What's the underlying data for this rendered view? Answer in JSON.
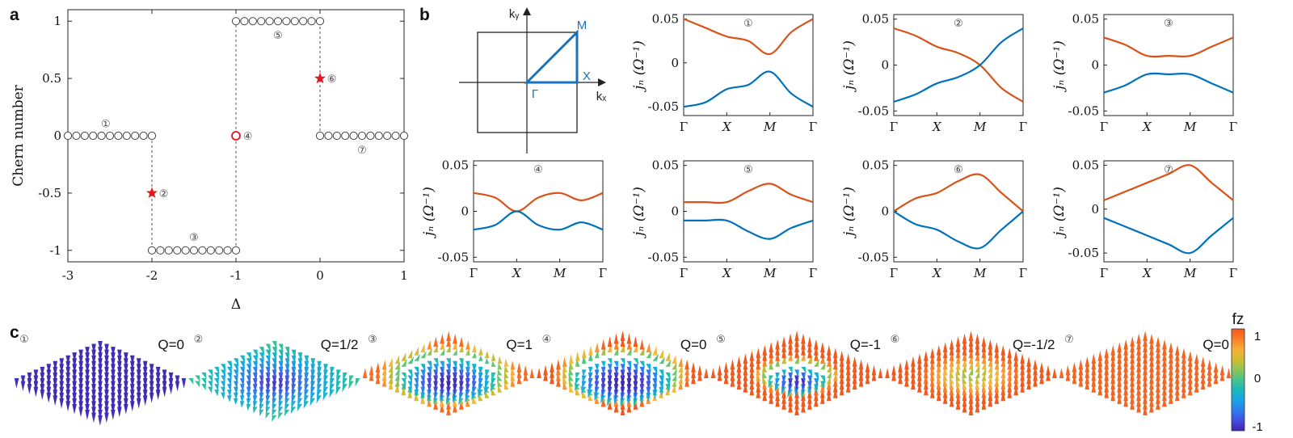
{
  "figure": {
    "panel_labels": [
      "a",
      "b",
      "c"
    ]
  },
  "colors": {
    "upper_band": "#d95319",
    "lower_band": "#0072bd",
    "marker": "#444444",
    "highlight": "#e8141b",
    "bz": "#1a72bb"
  },
  "chart_data": [
    {
      "type": "scatter",
      "id": "chern-vs-delta",
      "xlabel": "Δ",
      "ylabel": "Chern number",
      "xlim": [
        -3,
        1
      ],
      "ylim": [
        -1.1,
        1.1
      ],
      "xticks": [
        -3,
        -2,
        -1,
        0,
        1
      ],
      "xtick_labels": [
        "-3",
        "-2",
        "-1",
        "0",
        "1"
      ],
      "yticks": [
        -1,
        -0.5,
        0,
        0.5,
        1
      ],
      "ytick_labels": [
        "-1",
        "-0.5",
        "0",
        "0.5",
        "1"
      ],
      "series": [
        {
          "points": [
            [
              -3,
              0
            ],
            [
              -2.9,
              0
            ],
            [
              -2.8,
              0
            ],
            [
              -2.7,
              0
            ],
            [
              -2.6,
              0
            ],
            [
              -2.5,
              0
            ],
            [
              -2.4,
              0
            ],
            [
              -2.3,
              0
            ],
            [
              -2.2,
              0
            ],
            [
              -2.1,
              0
            ],
            [
              -2,
              0
            ]
          ],
          "marker": "open-circle"
        },
        {
          "points": [
            [
              -2,
              -1
            ],
            [
              -1.9,
              -1
            ],
            [
              -1.8,
              -1
            ],
            [
              -1.7,
              -1
            ],
            [
              -1.6,
              -1
            ],
            [
              -1.5,
              -1
            ],
            [
              -1.4,
              -1
            ],
            [
              -1.3,
              -1
            ],
            [
              -1.2,
              -1
            ],
            [
              -1.1,
              -1
            ],
            [
              -1,
              -1
            ]
          ],
          "marker": "open-circle"
        },
        {
          "points": [
            [
              -1,
              1
            ],
            [
              -0.9,
              1
            ],
            [
              -0.8,
              1
            ],
            [
              -0.7,
              1
            ],
            [
              -0.6,
              1
            ],
            [
              -0.5,
              1
            ],
            [
              -0.4,
              1
            ],
            [
              -0.3,
              1
            ],
            [
              -0.2,
              1
            ],
            [
              -0.1,
              1
            ],
            [
              0,
              1
            ]
          ],
          "marker": "open-circle"
        },
        {
          "points": [
            [
              0,
              0
            ],
            [
              0.1,
              0
            ],
            [
              0.2,
              0
            ],
            [
              0.3,
              0
            ],
            [
              0.4,
              0
            ],
            [
              0.5,
              0
            ],
            [
              0.6,
              0
            ],
            [
              0.7,
              0
            ],
            [
              0.8,
              0
            ],
            [
              0.9,
              0
            ],
            [
              1,
              0
            ]
          ],
          "marker": "open-circle"
        },
        {
          "points": [
            [
              -1,
              0
            ]
          ],
          "marker": "red-open-circle"
        },
        {
          "points": [
            [
              -2,
              -0.5
            ],
            [
              0,
              0.5
            ]
          ],
          "marker": "red-star"
        }
      ],
      "transitions": [
        [
          -2,
          0,
          -1
        ],
        [
          -1,
          -1,
          1
        ],
        [
          0,
          0,
          1
        ]
      ],
      "annotations": [
        {
          "text": "①",
          "x": -2.55,
          "y": 0.11
        },
        {
          "text": "②",
          "x": -1.86,
          "y": -0.5
        },
        {
          "text": "③",
          "x": -1.5,
          "y": -0.88
        },
        {
          "text": "④",
          "x": -0.86,
          "y": 0
        },
        {
          "text": "⑤",
          "x": -0.5,
          "y": 0.88
        },
        {
          "text": "⑥",
          "x": 0.14,
          "y": 0.5
        },
        {
          "text": "⑦",
          "x": 0.5,
          "y": -0.12
        }
      ]
    },
    {
      "type": "diagram",
      "id": "brillouin-zone",
      "labels": {
        "ky": "kᵧ",
        "kx": "kₓ",
        "M": "M",
        "X": "X",
        "G": "Γ"
      }
    },
    {
      "type": "line",
      "id": "band-1",
      "panel_tag": "①",
      "xticks": [
        "Γ",
        "X",
        "M",
        "Γ"
      ],
      "ylabel": "jₙ (Ω⁻¹)",
      "ylim": [
        -0.06,
        0.055
      ],
      "yticks": [
        0.05,
        0,
        -0.05
      ],
      "ytick_labels": [
        "0.05",
        "0",
        "-0.05"
      ],
      "x": [
        0,
        0.5,
        1,
        1.5,
        2,
        2.5,
        3
      ],
      "series": [
        {
          "values": [
            0.05,
            0.04,
            0.03,
            0.025,
            0.01,
            0.035,
            0.05
          ]
        },
        {
          "values": [
            -0.05,
            -0.045,
            -0.03,
            -0.025,
            -0.01,
            -0.035,
            -0.05
          ]
        }
      ]
    },
    {
      "type": "line",
      "id": "band-2",
      "panel_tag": "②",
      "xticks": [
        "Γ",
        "X",
        "M",
        "Γ"
      ],
      "ylabel": "jₙ (Ω⁻¹)",
      "ylim": [
        -0.055,
        0.055
      ],
      "yticks": [
        0.05,
        0,
        -0.05
      ],
      "ytick_labels": [
        "0.05",
        "0",
        "-0.05"
      ],
      "x": [
        0,
        0.5,
        1,
        1.5,
        2,
        2.5,
        3
      ],
      "series": [
        {
          "values": [
            0.04,
            0.032,
            0.02,
            0.013,
            0.0,
            -0.025,
            -0.04
          ]
        },
        {
          "values": [
            -0.04,
            -0.032,
            -0.02,
            -0.013,
            0.0,
            0.025,
            0.04
          ]
        }
      ]
    },
    {
      "type": "line",
      "id": "band-3",
      "panel_tag": "③",
      "xticks": [
        "Γ",
        "X",
        "M",
        "Γ"
      ],
      "ylabel": "jₙ (Ω⁻¹)",
      "ylim": [
        -0.055,
        0.055
      ],
      "yticks": [
        0.05,
        0,
        -0.05
      ],
      "ytick_labels": [
        "0.05",
        "0",
        "-0.05"
      ],
      "x": [
        0,
        0.5,
        1,
        1.5,
        2,
        2.5,
        3
      ],
      "series": [
        {
          "values": [
            0.03,
            0.022,
            0.01,
            0.01,
            0.01,
            0.02,
            0.03
          ]
        },
        {
          "values": [
            -0.03,
            -0.022,
            -0.01,
            -0.01,
            -0.01,
            -0.02,
            -0.03
          ]
        }
      ]
    },
    {
      "type": "line",
      "id": "band-4",
      "panel_tag": "④",
      "xticks": [
        "Γ",
        "X",
        "M",
        "Γ"
      ],
      "ylabel": "jₙ (Ω⁻¹)",
      "ylim": [
        -0.055,
        0.055
      ],
      "yticks": [
        0.05,
        0,
        -0.05
      ],
      "ytick_labels": [
        "0.05",
        "0",
        "-0.05"
      ],
      "x": [
        0,
        0.5,
        1,
        1.5,
        2,
        2.5,
        3
      ],
      "series": [
        {
          "values": [
            0.02,
            0.015,
            0.0,
            0.015,
            0.02,
            0.012,
            0.02
          ]
        },
        {
          "values": [
            -0.02,
            -0.015,
            0.0,
            -0.015,
            -0.02,
            -0.012,
            -0.02
          ]
        }
      ]
    },
    {
      "type": "line",
      "id": "band-5",
      "panel_tag": "⑤",
      "xticks": [
        "Γ",
        "X",
        "M",
        "Γ"
      ],
      "ylabel": "jₙ (Ω⁻¹)",
      "ylim": [
        -0.055,
        0.055
      ],
      "yticks": [
        0.05,
        0,
        -0.05
      ],
      "ytick_labels": [
        "0.05",
        "0",
        "-0.05"
      ],
      "x": [
        0,
        0.5,
        1,
        1.5,
        2,
        2.5,
        3
      ],
      "series": [
        {
          "values": [
            0.01,
            0.01,
            0.01,
            0.022,
            0.03,
            0.018,
            0.01
          ]
        },
        {
          "values": [
            -0.01,
            -0.01,
            -0.01,
            -0.022,
            -0.03,
            -0.018,
            -0.01
          ]
        }
      ]
    },
    {
      "type": "line",
      "id": "band-6",
      "panel_tag": "⑥",
      "xticks": [
        "Γ",
        "X",
        "M",
        "Γ"
      ],
      "ylabel": "jₙ (Ω⁻¹)",
      "ylim": [
        -0.055,
        0.055
      ],
      "yticks": [
        0.05,
        0,
        -0.05
      ],
      "ytick_labels": [
        "0.05",
        "0",
        "-0.05"
      ],
      "x": [
        0,
        0.5,
        1,
        1.5,
        2,
        2.5,
        3
      ],
      "series": [
        {
          "values": [
            0.0,
            0.014,
            0.02,
            0.033,
            0.04,
            0.02,
            0.0
          ]
        },
        {
          "values": [
            0.0,
            -0.014,
            -0.02,
            -0.033,
            -0.04,
            -0.02,
            0.0
          ]
        }
      ]
    },
    {
      "type": "line",
      "id": "band-7",
      "panel_tag": "⑦",
      "xticks": [
        "Γ",
        "X",
        "M",
        "Γ"
      ],
      "ylabel": "jₙ (Ω⁻¹)",
      "ylim": [
        -0.06,
        0.055
      ],
      "yticks": [
        0.05,
        0,
        -0.05
      ],
      "ytick_labels": [
        "0.05",
        "0",
        "-0.05"
      ],
      "x": [
        0,
        0.5,
        1,
        1.5,
        2,
        2.5,
        3
      ],
      "series": [
        {
          "values": [
            0.01,
            0.02,
            0.03,
            0.04,
            0.05,
            0.03,
            0.01
          ]
        },
        {
          "values": [
            -0.01,
            -0.02,
            -0.03,
            -0.04,
            -0.05,
            -0.03,
            -0.01
          ]
        }
      ]
    },
    {
      "type": "heatmap",
      "id": "spin-textures",
      "textures": [
        {
          "tag": "①",
          "label": "Q=0",
          "charge": 0
        },
        {
          "tag": "②",
          "label": "Q=1/2",
          "charge": 0.5
        },
        {
          "tag": "③",
          "label": "Q=1",
          "charge": 1
        },
        {
          "tag": "④",
          "label": "Q=0",
          "charge": 0.1
        },
        {
          "tag": "⑤",
          "label": "Q=-1",
          "charge": -1
        },
        {
          "tag": "⑥",
          "label": "Q=-1/2",
          "charge": -0.5
        },
        {
          "tag": "⑦",
          "label": "Q=0",
          "charge": -0.01
        }
      ],
      "colorbar": {
        "label": "fz",
        "ticks": [
          1,
          0,
          -1
        ],
        "tick_labels": [
          "1",
          "0",
          "-1"
        ],
        "colormap": "parula"
      }
    }
  ]
}
